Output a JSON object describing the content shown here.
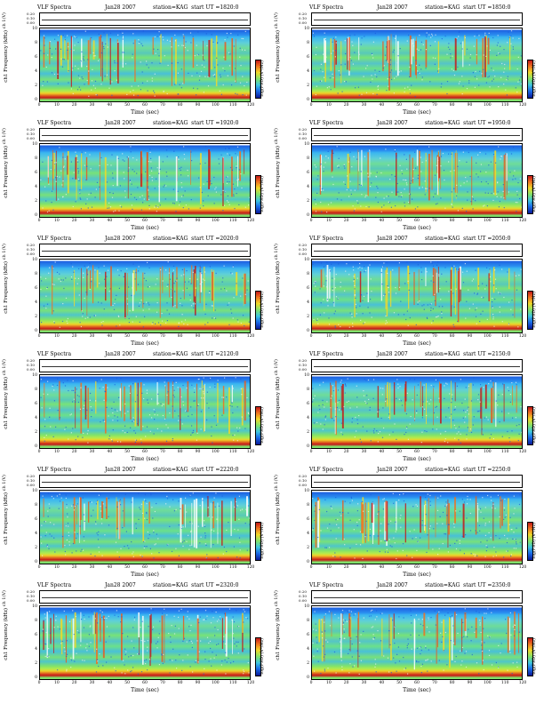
{
  "common": {
    "title_left": "VLF Spectra",
    "date": "Jan28 2007",
    "station": "station=KAG",
    "ch_label": "ch 1(V)",
    "freq_label": "ch1 Frequency (kHz)",
    "xlabel": "Time (sec)",
    "colorbar_label": "log(PSD) (V²/Hz)",
    "x_ticks": [
      "0",
      "10",
      "20",
      "30",
      "40",
      "50",
      "60",
      "70",
      "80",
      "90",
      "100",
      "110",
      "120"
    ],
    "f_ticks": [
      "10",
      "8",
      "6",
      "4",
      "2",
      "0"
    ],
    "ch_ticks": [
      "0.20",
      "0.10",
      "0.00"
    ]
  },
  "panels": [
    {
      "start": "start UT =1820:0"
    },
    {
      "start": "start UT =1850:0"
    },
    {
      "start": "start UT =1920:0"
    },
    {
      "start": "start UT =1950:0"
    },
    {
      "start": "start UT =2020:0"
    },
    {
      "start": "start UT =2050:0"
    },
    {
      "start": "start UT =2120:0"
    },
    {
      "start": "start UT =2150:0"
    },
    {
      "start": "start UT =2220:0"
    },
    {
      "start": "start UT =2250:0"
    },
    {
      "start": "start UT =2320:0"
    },
    {
      "start": "start UT =2350:0"
    }
  ],
  "chart_data": {
    "type": "heatmap",
    "xlabel": "Time (sec)",
    "ylabel": "Frequency (kHz)",
    "xlim": [
      0,
      120
    ],
    "ylim": [
      0,
      10
    ],
    "colorbar": "log(PSD) (V²/Hz)"
  }
}
